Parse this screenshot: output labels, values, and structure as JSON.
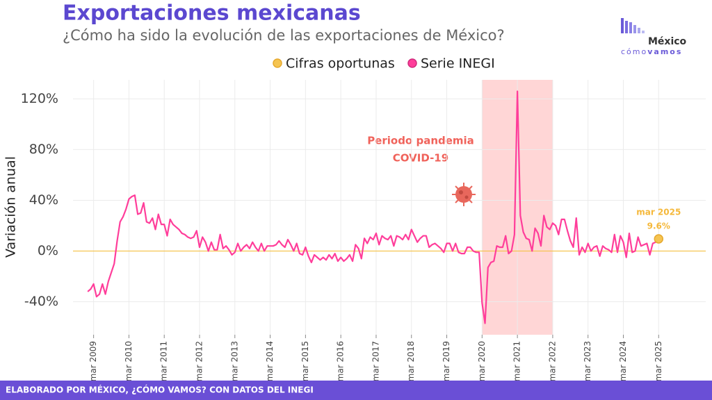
{
  "title": "Exportaciones mexicanas",
  "subtitle": "¿Cómo ha sido la evolución de las exportaciones de México?",
  "logo": {
    "name": "México",
    "tag1": "cómo",
    "tag2": "vamos"
  },
  "footer": "ELABORADO POR MÉXICO, ¿CÓMO VAMOS? CON DATOS DEL INEGI",
  "chart_data": {
    "type": "line",
    "y_label": "Variación anual",
    "xlim": [
      "2008-08",
      "2026-07"
    ],
    "ylim": [
      -66,
      135
    ],
    "yticks": [
      {
        "value": -40,
        "label": "-40%"
      },
      {
        "value": 0,
        "label": "0%"
      },
      {
        "value": 40,
        "label": "40%"
      },
      {
        "value": 80,
        "label": "80%"
      },
      {
        "value": 120,
        "label": "120%"
      }
    ],
    "xticks": [
      {
        "value": "2009-03",
        "label": "mar 2009"
      },
      {
        "value": "2010-03",
        "label": "mar 2010"
      },
      {
        "value": "2011-03",
        "label": "mar 2011"
      },
      {
        "value": "2012-03",
        "label": "mar 2012"
      },
      {
        "value": "2013-03",
        "label": "mar 2013"
      },
      {
        "value": "2014-03",
        "label": "mar 2014"
      },
      {
        "value": "2015-03",
        "label": "mar 2015"
      },
      {
        "value": "2016-03",
        "label": "mar 2016"
      },
      {
        "value": "2017-03",
        "label": "mar 2017"
      },
      {
        "value": "2018-03",
        "label": "mar 2018"
      },
      {
        "value": "2019-03",
        "label": "mar 2019"
      },
      {
        "value": "2020-03",
        "label": "mar 2020"
      },
      {
        "value": "2021-03",
        "label": "mar 2021"
      },
      {
        "value": "2022-03",
        "label": "mar 2022"
      },
      {
        "value": "2023-03",
        "label": "mar 2023"
      },
      {
        "value": "2024-03",
        "label": "mar 2024"
      },
      {
        "value": "2025-03",
        "label": "mar 2025"
      }
    ],
    "grid": true,
    "highlight_range": {
      "x": [
        "2020-03",
        "2022-03"
      ],
      "color": "#ffd6d6",
      "label": [
        "Periodo pandemia",
        "COVID-19"
      ]
    },
    "point_annotation": "mar 2025",
    "series": [
      {
        "name": "Cifras oportunas",
        "color": "#f5c451",
        "x": [
          "2025-03"
        ],
        "values": [
          9.6
        ],
        "value_labels": [
          "9.6%"
        ]
      },
      {
        "name": "Serie INEGI",
        "color": "#ff3d9a",
        "x": [
          "2009-01",
          "2009-02",
          "2009-03",
          "2009-04",
          "2009-05",
          "2009-06",
          "2009-07",
          "2009-08",
          "2009-09",
          "2009-10",
          "2009-11",
          "2009-12",
          "2010-01",
          "2010-02",
          "2010-03",
          "2010-04",
          "2010-05",
          "2010-06",
          "2010-07",
          "2010-08",
          "2010-09",
          "2010-10",
          "2010-11",
          "2010-12",
          "2011-01",
          "2011-02",
          "2011-03",
          "2011-04",
          "2011-05",
          "2011-06",
          "2011-07",
          "2011-08",
          "2011-09",
          "2011-10",
          "2011-11",
          "2011-12",
          "2012-01",
          "2012-02",
          "2012-03",
          "2012-04",
          "2012-05",
          "2012-06",
          "2012-07",
          "2012-08",
          "2012-09",
          "2012-10",
          "2012-11",
          "2012-12",
          "2013-01",
          "2013-02",
          "2013-03",
          "2013-04",
          "2013-05",
          "2013-06",
          "2013-07",
          "2013-08",
          "2013-09",
          "2013-10",
          "2013-11",
          "2013-12",
          "2014-01",
          "2014-02",
          "2014-03",
          "2014-04",
          "2014-05",
          "2014-06",
          "2014-07",
          "2014-08",
          "2014-09",
          "2014-10",
          "2014-11",
          "2014-12",
          "2015-01",
          "2015-02",
          "2015-03",
          "2015-04",
          "2015-05",
          "2015-06",
          "2015-07",
          "2015-08",
          "2015-09",
          "2015-10",
          "2015-11",
          "2015-12",
          "2016-01",
          "2016-02",
          "2016-03",
          "2016-04",
          "2016-05",
          "2016-06",
          "2016-07",
          "2016-08",
          "2016-09",
          "2016-10",
          "2016-11",
          "2016-12",
          "2017-01",
          "2017-02",
          "2017-03",
          "2017-04",
          "2017-05",
          "2017-06",
          "2017-07",
          "2017-08",
          "2017-09",
          "2017-10",
          "2017-11",
          "2017-12",
          "2018-01",
          "2018-02",
          "2018-03",
          "2018-04",
          "2018-05",
          "2018-06",
          "2018-07",
          "2018-08",
          "2018-09",
          "2018-10",
          "2018-11",
          "2018-12",
          "2019-01",
          "2019-02",
          "2019-03",
          "2019-04",
          "2019-05",
          "2019-06",
          "2019-07",
          "2019-08",
          "2019-09",
          "2019-10",
          "2019-11",
          "2019-12",
          "2020-01",
          "2020-02",
          "2020-03",
          "2020-04",
          "2020-05",
          "2020-06",
          "2020-07",
          "2020-08",
          "2020-09",
          "2020-10",
          "2020-11",
          "2020-12",
          "2021-01",
          "2021-02",
          "2021-03",
          "2021-04",
          "2021-05",
          "2021-06",
          "2021-07",
          "2021-08",
          "2021-09",
          "2021-10",
          "2021-11",
          "2021-12",
          "2022-01",
          "2022-02",
          "2022-03",
          "2022-04",
          "2022-05",
          "2022-06",
          "2022-07",
          "2022-08",
          "2022-09",
          "2022-10",
          "2022-11",
          "2022-12",
          "2023-01",
          "2023-02",
          "2023-03",
          "2023-04",
          "2023-05",
          "2023-06",
          "2023-07",
          "2023-08",
          "2023-09",
          "2023-10",
          "2023-11",
          "2023-12",
          "2024-01",
          "2024-02",
          "2024-03",
          "2024-04",
          "2024-05",
          "2024-06",
          "2024-07",
          "2024-08",
          "2024-09",
          "2024-10",
          "2024-11",
          "2024-12",
          "2025-01",
          "2025-02"
        ],
        "values": [
          -32,
          -30,
          -26,
          -36,
          -34,
          -26,
          -34,
          -24,
          -17,
          -10,
          8,
          23,
          27,
          33,
          41,
          43,
          44,
          29,
          30,
          38,
          23,
          22,
          26,
          17,
          29,
          21,
          21,
          12,
          25,
          21,
          19,
          17,
          14,
          13,
          11,
          10,
          11,
          16,
          3,
          11,
          7,
          0,
          7,
          1,
          1,
          13,
          2,
          4,
          1,
          -3,
          -1,
          6,
          0,
          3,
          5,
          2,
          7,
          3,
          0,
          6,
          0,
          4,
          4,
          4,
          5,
          8,
          5,
          3,
          9,
          5,
          0,
          6,
          -2,
          -3,
          3,
          -4,
          -9,
          -3,
          -5,
          -7,
          -5,
          -7,
          -3,
          -6,
          -2,
          -8,
          -5,
          -8,
          -6,
          -3,
          -8,
          5,
          2,
          -6,
          10,
          6,
          11,
          9,
          14,
          5,
          12,
          10,
          9,
          12,
          4,
          12,
          11,
          9,
          13,
          9,
          17,
          12,
          7,
          10,
          12,
          12,
          3,
          5,
          6,
          4,
          2,
          -1,
          6,
          6,
          0,
          6,
          -1,
          -2,
          -2,
          3,
          3,
          0,
          -1,
          -1,
          -41,
          -57,
          -13,
          -9,
          -8,
          4,
          3,
          3,
          12,
          -2,
          0,
          13,
          126,
          28,
          15,
          10,
          9,
          0,
          18,
          14,
          4,
          28,
          19,
          17,
          22,
          20,
          13,
          25,
          25,
          16,
          8,
          3,
          26,
          -3,
          3,
          -1,
          6,
          0,
          3,
          4,
          -4,
          4,
          2,
          1,
          -1,
          13,
          -1,
          12,
          7,
          -5,
          14,
          -1,
          0,
          11,
          4,
          5,
          6,
          -3,
          6,
          7
        ]
      }
    ]
  }
}
